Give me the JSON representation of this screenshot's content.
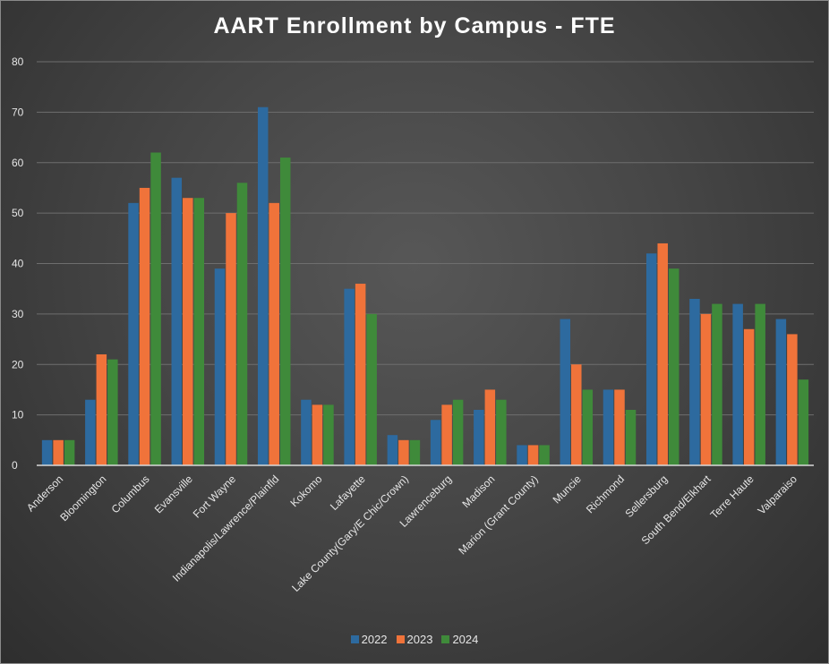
{
  "chart_data": {
    "type": "bar",
    "title": "AART Enrollment by Campus - FTE",
    "categories": [
      "Anderson",
      "Bloomington",
      "Columbus",
      "Evansville",
      "Fort Wayne",
      "Indianapolis/Lawrence/Plainfld",
      "Kokomo",
      "Lafayette",
      "Lake County(Gary/E Chic/Crown)",
      "Lawrenceburg",
      "Madison",
      "Marion (Grant County)",
      "Muncie",
      "Richmond",
      "Sellersburg",
      "South Bend/Elkhart",
      "Terre Haute",
      "Valparaiso"
    ],
    "series": [
      {
        "name": "2022",
        "color": "#2d6a9f",
        "values": [
          5,
          13,
          52,
          57,
          39,
          71,
          13,
          35,
          6,
          9,
          11,
          4,
          29,
          15,
          42,
          33,
          32,
          29
        ]
      },
      {
        "name": "2023",
        "color": "#f0733a",
        "values": [
          5,
          22,
          55,
          53,
          50,
          52,
          12,
          36,
          5,
          12,
          15,
          4,
          20,
          15,
          44,
          30,
          27,
          26
        ]
      },
      {
        "name": "2024",
        "color": "#3f8a3a",
        "values": [
          5,
          21,
          62,
          53,
          56,
          61,
          12,
          30,
          5,
          13,
          13,
          4,
          15,
          11,
          39,
          32,
          32,
          17
        ]
      }
    ],
    "ylim": [
      0,
      80
    ],
    "yticks": [
      0,
      10,
      20,
      30,
      40,
      50,
      60,
      70,
      80
    ],
    "grid": true,
    "legend": "bottom",
    "background": "#464646",
    "gridline_color": "#6e6e6e",
    "text_color": "#e6e6e6"
  }
}
